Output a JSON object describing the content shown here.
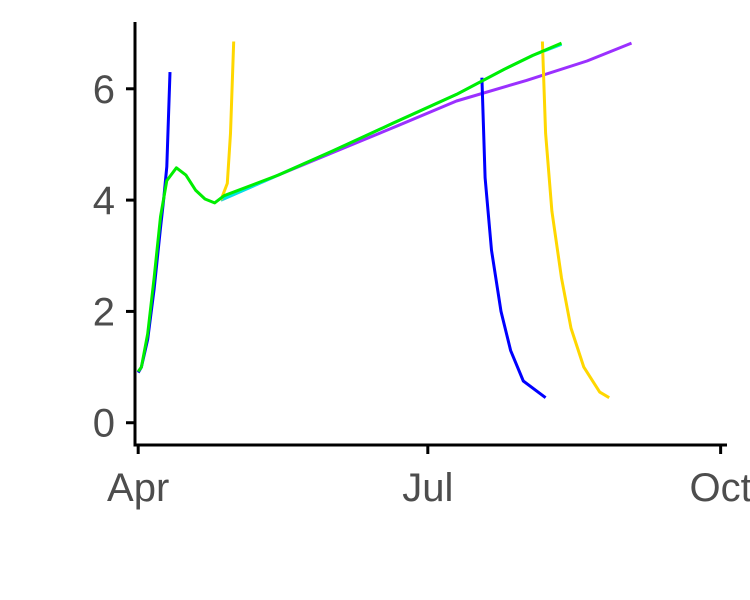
{
  "chart_data": {
    "type": "line",
    "title": "",
    "xlabel": "",
    "ylabel": "",
    "xlim": [
      "2020-03-31",
      "2020-10-03"
    ],
    "ylim": [
      -0.4,
      7.2
    ],
    "x_ticks": [
      {
        "label": "Apr",
        "date": "2020-04-01"
      },
      {
        "label": "Jul",
        "date": "2020-07-01"
      },
      {
        "label": "Oct",
        "date": "2020-10-01"
      }
    ],
    "y_ticks": [
      0,
      2,
      4,
      6
    ],
    "grid": false,
    "legend": "none",
    "series": [
      {
        "color": "#9b30ff",
        "points": [
          [
            "2020-04-27",
            4.0
          ],
          [
            "2020-05-15",
            4.45
          ],
          [
            "2020-06-01",
            4.85
          ],
          [
            "2020-06-20",
            5.3
          ],
          [
            "2020-07-10",
            5.78
          ],
          [
            "2020-08-01",
            6.15
          ],
          [
            "2020-08-20",
            6.5
          ],
          [
            "2020-09-03",
            6.82
          ]
        ]
      },
      {
        "color": "#00e5e5",
        "points": [
          [
            "2020-04-27",
            4.0
          ],
          [
            "2020-05-15",
            4.45
          ],
          [
            "2020-06-01",
            4.88
          ],
          [
            "2020-06-20",
            5.38
          ],
          [
            "2020-07-10",
            5.9
          ],
          [
            "2020-07-25",
            6.35
          ],
          [
            "2020-08-03",
            6.6
          ],
          [
            "2020-08-12",
            6.8
          ]
        ]
      },
      {
        "color": "#0000ff",
        "points": [
          [
            "2020-04-01",
            0.9
          ],
          [
            "2020-04-02",
            1.0
          ],
          [
            "2020-04-04",
            1.5
          ],
          [
            "2020-04-06",
            2.4
          ],
          [
            "2020-04-08",
            3.5
          ],
          [
            "2020-04-09",
            4.0
          ],
          [
            "2020-04-10",
            4.6
          ],
          [
            "2020-04-11",
            6.3
          ]
        ]
      },
      {
        "color": "#0000ff",
        "points": [
          [
            "2020-07-18",
            6.2
          ],
          [
            "2020-07-19",
            4.4
          ],
          [
            "2020-07-21",
            3.1
          ],
          [
            "2020-07-24",
            2.0
          ],
          [
            "2020-07-27",
            1.3
          ],
          [
            "2020-07-31",
            0.75
          ],
          [
            "2020-08-07",
            0.45
          ]
        ]
      },
      {
        "color": "#ffd700",
        "points": [
          [
            "2020-04-27",
            4.0
          ],
          [
            "2020-04-29",
            4.3
          ],
          [
            "2020-04-30",
            5.2
          ],
          [
            "2020-05-01",
            6.85
          ]
        ]
      },
      {
        "color": "#ffd700",
        "points": [
          [
            "2020-08-06",
            6.85
          ],
          [
            "2020-08-07",
            5.2
          ],
          [
            "2020-08-09",
            3.8
          ],
          [
            "2020-08-12",
            2.6
          ],
          [
            "2020-08-15",
            1.7
          ],
          [
            "2020-08-19",
            1.0
          ],
          [
            "2020-08-24",
            0.55
          ],
          [
            "2020-08-27",
            0.45
          ]
        ]
      },
      {
        "color": "#00ee00",
        "points": [
          [
            "2020-04-01",
            0.92
          ],
          [
            "2020-04-02",
            1.0
          ],
          [
            "2020-04-04",
            1.6
          ],
          [
            "2020-04-06",
            2.6
          ],
          [
            "2020-04-08",
            3.7
          ],
          [
            "2020-04-10",
            4.35
          ],
          [
            "2020-04-13",
            4.58
          ],
          [
            "2020-04-16",
            4.45
          ],
          [
            "2020-04-19",
            4.18
          ],
          [
            "2020-04-22",
            4.02
          ],
          [
            "2020-04-25",
            3.95
          ],
          [
            "2020-04-28",
            4.08
          ],
          [
            "2020-05-15",
            4.45
          ],
          [
            "2020-06-01",
            4.88
          ],
          [
            "2020-06-20",
            5.38
          ],
          [
            "2020-07-10",
            5.9
          ],
          [
            "2020-07-25",
            6.35
          ],
          [
            "2020-08-03",
            6.6
          ],
          [
            "2020-08-12",
            6.82
          ]
        ]
      }
    ]
  }
}
